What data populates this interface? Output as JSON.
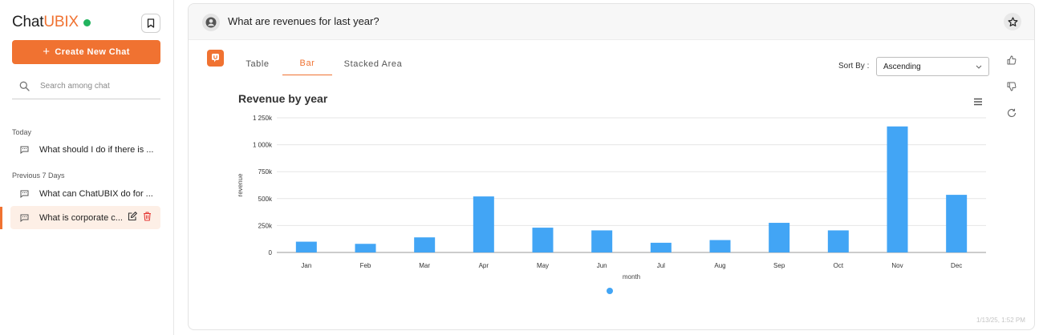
{
  "sidebar": {
    "brand_part1": "Chat",
    "brand_part2": "UBIX",
    "new_chat_label": "Create New Chat",
    "search_placeholder": "Search among chat",
    "today_label": "Today",
    "previous_label": "Previous 7 Days",
    "chats": [
      {
        "title": "What should I do if there is ..."
      },
      {
        "title": "What can ChatUBIX do for ..."
      },
      {
        "title": "What is corporate c..."
      }
    ]
  },
  "main": {
    "question": "What are revenues for last year?",
    "tabs": [
      {
        "label": "Table"
      },
      {
        "label": "Bar"
      },
      {
        "label": "Stacked Area"
      }
    ],
    "sort_label": "Sort By :",
    "sort_value": "Ascending",
    "timestamp": "1/13/25, 1:52 PM"
  },
  "colors": {
    "accent": "#f07231",
    "status": "#22b35e",
    "bar": "#42a5f5"
  },
  "chart_data": {
    "type": "bar",
    "title": "Revenue by year",
    "xlabel": "month",
    "ylabel": "revenue",
    "categories": [
      "Jan",
      "Feb",
      "Mar",
      "Apr",
      "May",
      "Jun",
      "Jul",
      "Aug",
      "Sep",
      "Oct",
      "Nov",
      "Dec"
    ],
    "values": [
      100000,
      80000,
      140000,
      520000,
      230000,
      205000,
      90000,
      115000,
      275000,
      205000,
      1170000,
      535000
    ],
    "ylim": [
      0,
      1250000
    ],
    "yticks": [
      {
        "value": 0,
        "label": "0"
      },
      {
        "value": 250000,
        "label": "250k"
      },
      {
        "value": 500000,
        "label": "500k"
      },
      {
        "value": 750000,
        "label": "750k"
      },
      {
        "value": 1000000,
        "label": "1 000k"
      },
      {
        "value": 1250000,
        "label": "1 250k"
      }
    ],
    "grid": true
  }
}
